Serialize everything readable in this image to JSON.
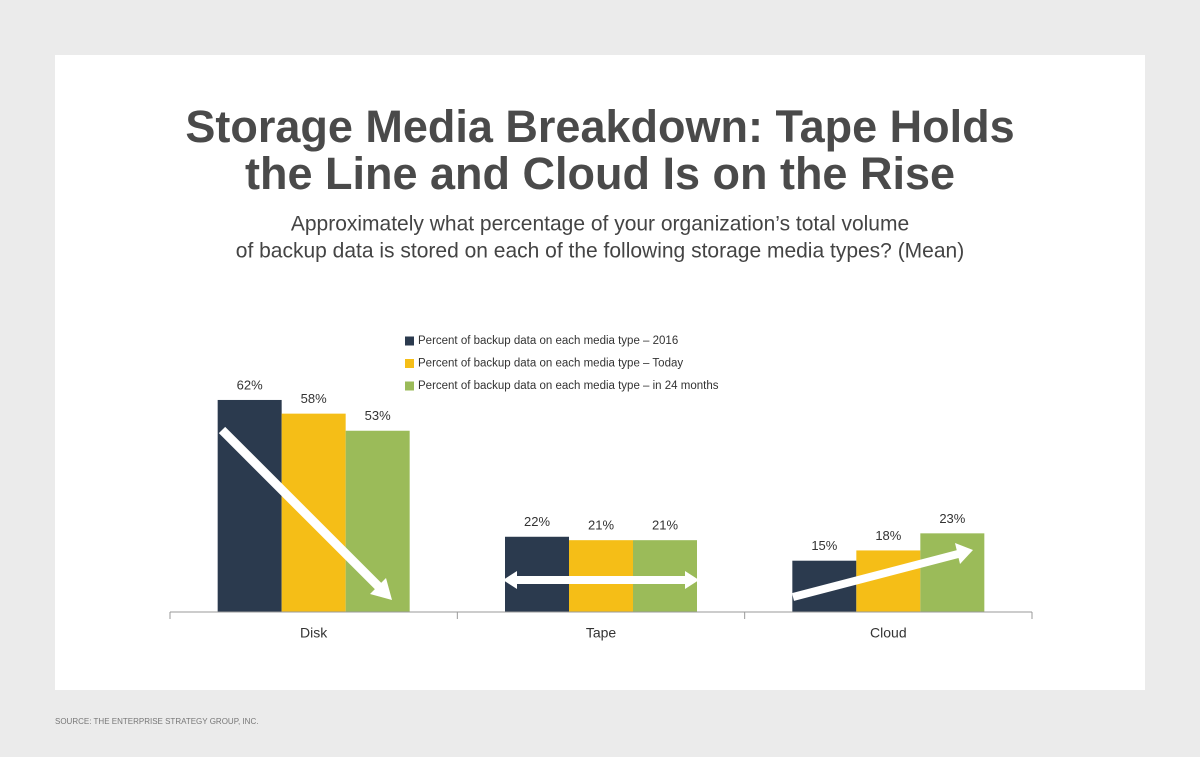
{
  "chart_data": {
    "type": "bar",
    "title": [
      "Storage Media Breakdown: Tape Holds",
      "the Line and Cloud Is on the Rise"
    ],
    "subtitle": [
      "Approximately what percentage of your organization’s total volume",
      "of backup data is stored on each of the following storage media types? (Mean)"
    ],
    "categories": [
      "Disk",
      "Tape",
      "Cloud"
    ],
    "series": [
      {
        "name": "Percent of backup data on each media type – 2016",
        "color": "#2b3a4e",
        "values": [
          62,
          22,
          15
        ],
        "value_labels": [
          "62%",
          "22%",
          "15%"
        ]
      },
      {
        "name": "Percent of backup data on each media type – Today",
        "color": "#f5be17",
        "values": [
          58,
          21,
          18
        ],
        "value_labels": [
          "58%",
          "21%",
          "18%"
        ]
      },
      {
        "name": "Percent of backup data on each media type – in 24 months",
        "color": "#9bbb59",
        "values": [
          53,
          21,
          23
        ],
        "value_labels": [
          "53%",
          "21%",
          "23%"
        ]
      }
    ],
    "source": "SOURCE: THE ENTERPRISE STRATEGY GROUP, INC."
  }
}
